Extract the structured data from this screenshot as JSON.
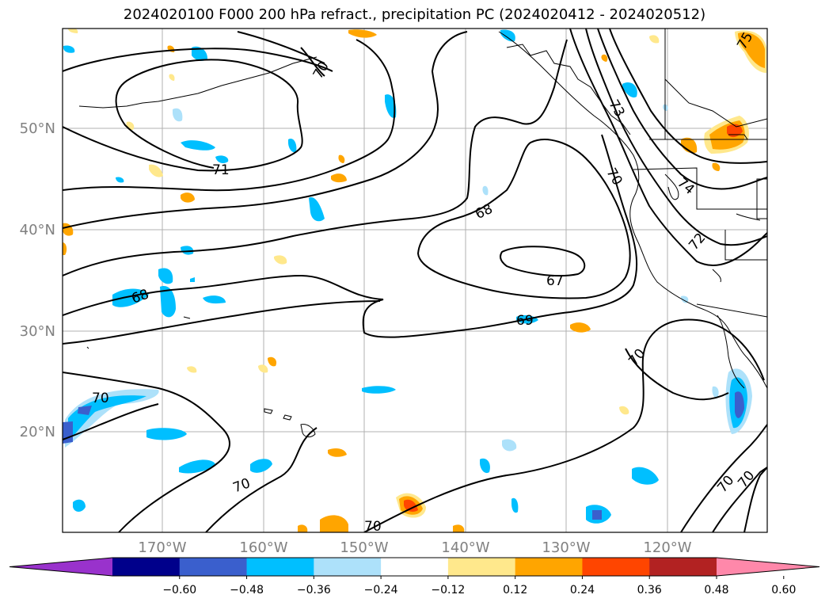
{
  "title": "2024020100 F000 200 hPa refract., precipitation PC (2024020412 - 2024020512)",
  "lat_labels": [
    "50°N",
    "40°N",
    "30°N",
    "20°N"
  ],
  "lon_labels": [
    "170°W",
    "160°W",
    "150°W",
    "140°W",
    "130°W",
    "120°W"
  ],
  "contour_labels": [
    "70",
    "71",
    "68",
    "67",
    "69",
    "70",
    "70",
    "70",
    "70",
    "70",
    "72",
    "73",
    "74",
    "70",
    "68",
    "75"
  ],
  "colorbar": {
    "ticks": [
      "−0.60",
      "−0.48",
      "−0.36",
      "−0.24",
      "−0.12",
      "0.12",
      "0.24",
      "0.36",
      "0.48",
      "0.60"
    ],
    "colors": [
      "#9932CC",
      "#00008B",
      "#3A5FCD",
      "#00BFFF",
      "#ADE1FA",
      "#FFFFFF",
      "#FFE88C",
      "#FFA500",
      "#FF4500",
      "#B22222",
      "#FF88AA"
    ]
  }
}
